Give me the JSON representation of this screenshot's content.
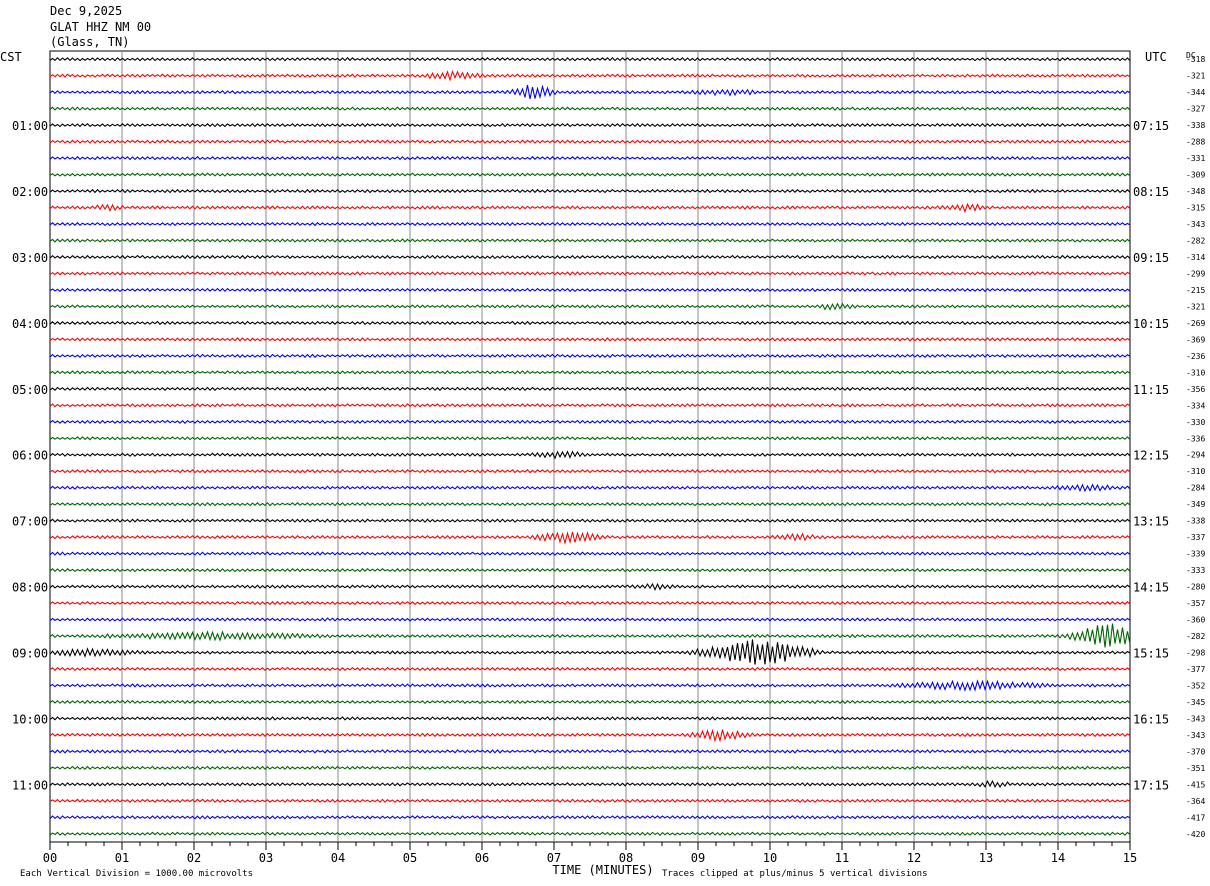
{
  "header": {
    "date": "Dec 9,2025",
    "station": "GLAT HHZ NM 00",
    "location": "(Glass, TN)"
  },
  "footer": {
    "scale_note": "Each Vertical Division = 1000.00 microvolts",
    "clip_note": "Traces clipped at plus/minus 5 vertical divisions"
  },
  "chart_data": {
    "type": "line",
    "title": "",
    "xlabel": "TIME (MINUTES)",
    "x_ticks": [
      "00",
      "01",
      "02",
      "03",
      "04",
      "05",
      "06",
      "07",
      "08",
      "09",
      "10",
      "11",
      "12",
      "13",
      "14",
      "15"
    ],
    "xlim": [
      0,
      15
    ],
    "left_axis_label": "CST",
    "right_axis_label": "UTC",
    "dc_label": "DC",
    "grid": true,
    "series_colors": [
      "#000000",
      "#ff0000",
      "#0000ff",
      "#006600"
    ],
    "left_time_labels": [
      "01:00",
      "02:00",
      "03:00",
      "04:00",
      "05:00",
      "06:00",
      "07:00",
      "08:00",
      "09:00",
      "10:00",
      "11:00"
    ],
    "right_time_labels": [
      "07:15",
      "08:15",
      "09:15",
      "10:15",
      "11:15",
      "12:15",
      "13:15",
      "14:15",
      "15:15",
      "16:15",
      "17:15"
    ],
    "dc_offsets": [
      "-318",
      "-321",
      "-344",
      "-327",
      "-338",
      "-288",
      "-331",
      "-309",
      "-348",
      "-315",
      "-343",
      "-282",
      "-314",
      "-299",
      "-215",
      "-321",
      "-269",
      "-369",
      "-236",
      "-310",
      "-356",
      "-334",
      "-330",
      "-336",
      "-294",
      "-310",
      "-284",
      "-349",
      "-338",
      "-337",
      "-339",
      "-333",
      "-280",
      "-357",
      "-360",
      "-282",
      "-298",
      "-377",
      "-352",
      "-345",
      "-343",
      "-343",
      "-370",
      "-351",
      "-415",
      "-364",
      "-417",
      "-420"
    ],
    "events": [
      {
        "trace": 1,
        "x": 5.6,
        "amp": 3,
        "dur": 0.5
      },
      {
        "trace": 2,
        "x": 6.7,
        "amp": 7,
        "dur": 0.4
      },
      {
        "trace": 2,
        "x": 9.4,
        "amp": 2,
        "dur": 0.6
      },
      {
        "trace": 9,
        "x": 0.8,
        "amp": 2,
        "dur": 0.3
      },
      {
        "trace": 9,
        "x": 12.7,
        "amp": 3,
        "dur": 0.4
      },
      {
        "trace": 15,
        "x": 10.9,
        "amp": 3,
        "dur": 0.3
      },
      {
        "trace": 24,
        "x": 7.1,
        "amp": 2.5,
        "dur": 0.5
      },
      {
        "trace": 26,
        "x": 14.4,
        "amp": 2.5,
        "dur": 0.6
      },
      {
        "trace": 29,
        "x": 7.2,
        "amp": 5,
        "dur": 0.6
      },
      {
        "trace": 29,
        "x": 10.4,
        "amp": 2.5,
        "dur": 0.4
      },
      {
        "trace": 32,
        "x": 8.4,
        "amp": 2,
        "dur": 0.4
      },
      {
        "trace": 35,
        "x": 2.3,
        "amp": 3,
        "dur": 1.8
      },
      {
        "trace": 35,
        "x": 14.7,
        "amp": 12,
        "dur": 0.7
      },
      {
        "trace": 36,
        "x": 9.8,
        "amp": 13,
        "dur": 1.0
      },
      {
        "trace": 36,
        "x": 0.5,
        "amp": 2.5,
        "dur": 1.0
      },
      {
        "trace": 38,
        "x": 12.8,
        "amp": 4,
        "dur": 1.2
      },
      {
        "trace": 41,
        "x": 9.3,
        "amp": 5,
        "dur": 0.5
      },
      {
        "trace": 44,
        "x": 13.1,
        "amp": 2.5,
        "dur": 0.3
      }
    ]
  }
}
